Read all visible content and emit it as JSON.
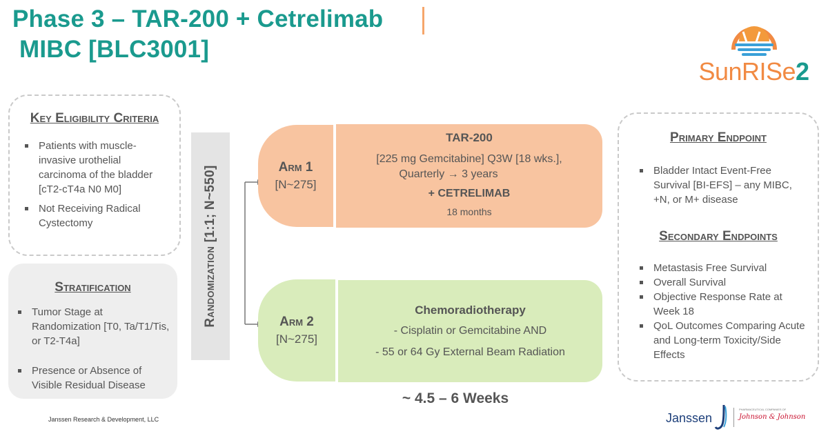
{
  "title": {
    "line1": "Phase 3 – TAR-200  + Cetrelimab",
    "line2": "MIBC [BLC3001]"
  },
  "logo": {
    "text_main": "SunRISe",
    "text_num": "2",
    "colors": {
      "orange": "#f18a43",
      "teal": "#1a9a8e",
      "blue": "#3aa0d8"
    }
  },
  "eligibility": {
    "heading": "Key Eligibility Criteria",
    "items": [
      "Patients with muscle-invasive urothelial carcinoma of the bladder [cT2-cT4a N0 M0]",
      "Not Receiving Radical Cystectomy"
    ]
  },
  "stratification": {
    "heading": "Stratification",
    "items": [
      "Tumor Stage at Randomization [T0, Ta/T1/Tis, or T2-T4a]",
      "Presence or Absence of Visible Residual Disease"
    ]
  },
  "randomization": {
    "label": "Randomization [1:1; N~550]"
  },
  "arm1": {
    "name": "Arm 1",
    "n": "[N~275]",
    "drug": "TAR-200",
    "dose_line1": "[225 mg Gemcitabine] Q3W [18 wks.],",
    "dose_line2": "Quarterly → 3 years",
    "combo": "+ CETRELIMAB",
    "duration": "18 months"
  },
  "arm2": {
    "name": "Arm 2",
    "n": "[N~275]",
    "therapy": "Chemoradiotherapy",
    "line1": "- Cisplatin or Gemcitabine AND",
    "line2": "- 55 or 64 Gy External Beam Radiation"
  },
  "weeks": "~ 4.5 – 6 Weeks",
  "primary": {
    "heading": "Primary Endpoint",
    "items": [
      "Bladder Intact Event-Free Survival [BI-EFS] – any MIBC, +N, or M+ disease"
    ]
  },
  "secondary": {
    "heading": "Secondary Endpoints",
    "items": [
      "Metastasis Free Survival",
      "Overall Survival",
      "Objective Response Rate at Week 18",
      "QoL Outcomes Comparing Acute and Long-term Toxicity/Side Effects"
    ]
  },
  "footer": "Janssen Research & Development, LLC",
  "janssen": {
    "name": "Janssen",
    "tagline": "PHARMACEUTICAL COMPANIES OF",
    "parent": "Johnson & Johnson"
  },
  "colors": {
    "teal": "#1a9a8e",
    "orange_arm": "#f8c4a0",
    "green_arm": "#d9ecbb",
    "accent_orange": "#f6a66b"
  }
}
